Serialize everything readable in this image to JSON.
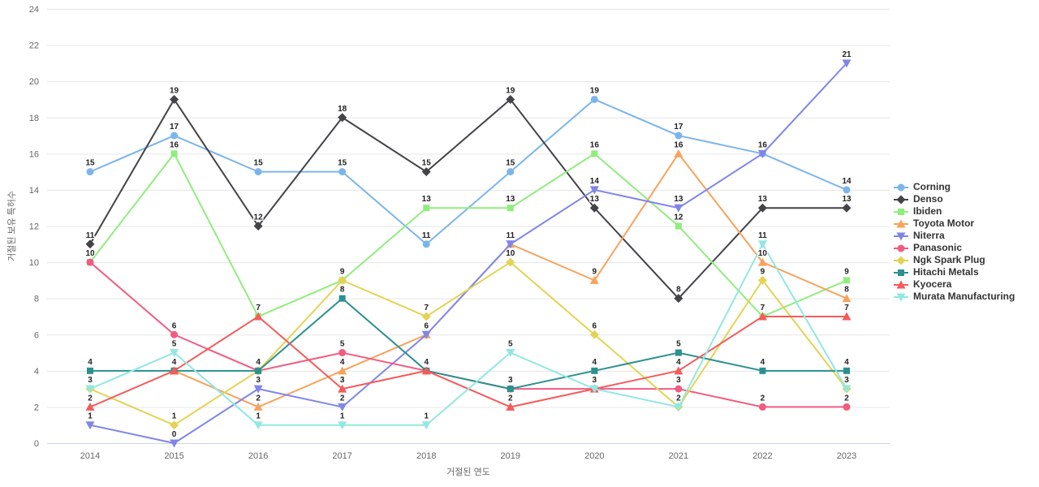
{
  "chart_data": {
    "type": "line",
    "xlabel": "거절된 연도",
    "ylabel": "거절된 보유 특허수",
    "x": [
      "2014",
      "2015",
      "2016",
      "2017",
      "2018",
      "2019",
      "2020",
      "2021",
      "2022",
      "2023"
    ],
    "ylim": [
      0,
      24
    ],
    "yticks": [
      0,
      2,
      4,
      6,
      8,
      10,
      12,
      14,
      16,
      18,
      20,
      22,
      24
    ],
    "grid": "horizontal",
    "legend_position": "right",
    "data_labels": true,
    "series": [
      {
        "name": "Corning",
        "color": "#7cb5ec",
        "marker": "circle",
        "values": [
          15,
          17,
          15,
          15,
          11,
          15,
          19,
          17,
          16,
          14
        ]
      },
      {
        "name": "Denso",
        "color": "#434348",
        "marker": "diamond",
        "values": [
          11,
          19,
          12,
          18,
          15,
          19,
          13,
          8,
          13,
          13
        ]
      },
      {
        "name": "Ibiden",
        "color": "#90ed7d",
        "marker": "square",
        "values": [
          10,
          16,
          7,
          9,
          13,
          13,
          16,
          12,
          7,
          9
        ]
      },
      {
        "name": "Toyota Motor",
        "color": "#f7a35c",
        "marker": "triangle",
        "values": [
          null,
          4,
          2,
          4,
          6,
          11,
          9,
          16,
          10,
          8
        ]
      },
      {
        "name": "Niterra",
        "color": "#8085e9",
        "marker": "triangle-down",
        "values": [
          1,
          0,
          3,
          2,
          6,
          11,
          14,
          13,
          16,
          21
        ]
      },
      {
        "name": "Panasonic",
        "color": "#f15c80",
        "marker": "circle",
        "values": [
          10,
          6,
          4,
          5,
          4,
          3,
          3,
          3,
          2,
          2
        ]
      },
      {
        "name": "Ngk Spark Plug",
        "color": "#e4d354",
        "marker": "diamond",
        "values": [
          3,
          1,
          4,
          9,
          7,
          10,
          6,
          2,
          9,
          3
        ]
      },
      {
        "name": "Hitachi Metals",
        "color": "#2b908f",
        "marker": "square",
        "values": [
          4,
          4,
          4,
          8,
          4,
          3,
          4,
          5,
          4,
          4
        ]
      },
      {
        "name": "Kyocera",
        "color": "#f45b5b",
        "marker": "triangle",
        "values": [
          2,
          4,
          7,
          3,
          4,
          2,
          3,
          4,
          7,
          7
        ]
      },
      {
        "name": "Murata Manufacturing",
        "color": "#91e8e1",
        "marker": "triangle-down",
        "values": [
          3,
          5,
          1,
          1,
          1,
          5,
          3,
          2,
          11,
          3
        ]
      }
    ]
  },
  "colors": {
    "background": "#ffffff",
    "gridline": "#e6e6e6",
    "axis_line": "#ccd6eb",
    "tick_text": "#666666",
    "axis_title_text": "#666666",
    "data_label_text": "#222222",
    "legend_text": "#333333"
  }
}
